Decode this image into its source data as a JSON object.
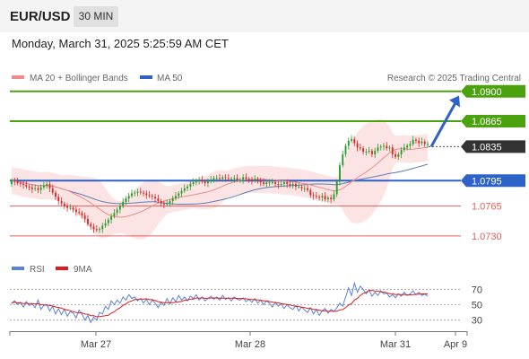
{
  "header": {
    "pair": "EUR/USD",
    "timeframe": "30 MIN"
  },
  "timestamp": "Monday, March 31, 2025 5:25:59 AM CET",
  "legend": {
    "ma20": "MA 20 + Bollinger Bands",
    "ma50": "MA 50",
    "rsi": "RSI",
    "ma9": "9MA"
  },
  "copyright": "Research © 2025 Trading Central",
  "colors": {
    "resistance": "#4aa20f",
    "current": "#333333",
    "pivot": "#2d62c8",
    "support": "#e06060",
    "arrow": "#2d62c8",
    "candle_up": "#2a9b2a",
    "candle_down": "#d62b2b",
    "ma20": "#f08a8a",
    "ma50": "#5a7db5",
    "bands": "#fde4e4",
    "rsi": "#5b83d6",
    "ma9": "#dd1c1c"
  },
  "chart_data": {
    "type": "candlestick",
    "x_ticks": [
      "Mar 27",
      "Mar 28",
      "Mar 31",
      "Apr 9"
    ],
    "ylim": [
      1.0714,
      1.0904
    ],
    "levels": [
      {
        "value": 1.09,
        "label": "1.0900",
        "kind": "resistance"
      },
      {
        "value": 1.0865,
        "label": "1.0865",
        "kind": "resistance"
      },
      {
        "value": 1.0835,
        "label": "1.0835",
        "kind": "current"
      },
      {
        "value": 1.0795,
        "label": "1.0795",
        "kind": "pivot"
      },
      {
        "value": 1.0765,
        "label": "1.0765",
        "kind": "support"
      },
      {
        "value": 1.073,
        "label": "1.0730",
        "kind": "support"
      }
    ],
    "forecast_arrow": {
      "from": 1.0835,
      "to": 1.0895
    },
    "close": [
      1.0795,
      1.0794,
      1.0792,
      1.0791,
      1.079,
      1.0788,
      1.0787,
      1.0785,
      1.0786,
      1.0784,
      1.0787,
      1.0789,
      1.0791,
      1.0786,
      1.0781,
      1.0776,
      1.0771,
      1.0768,
      1.0765,
      1.0763,
      1.0763,
      1.0761,
      1.0758,
      1.0757,
      1.0754,
      1.075,
      1.0744,
      1.0741,
      1.0738,
      1.0737,
      1.0738,
      1.0742,
      1.0745,
      1.0749,
      1.0753,
      1.0757,
      1.0761,
      1.0765,
      1.077,
      1.0774,
      1.0777,
      1.078,
      1.0781,
      1.0782,
      1.0781,
      1.078,
      1.0778,
      1.0777,
      1.0776,
      1.0774,
      1.0771,
      1.0768,
      1.0767,
      1.0768,
      1.0771,
      1.0774,
      1.0777,
      1.078,
      1.0783,
      1.0786,
      1.0788,
      1.0791,
      1.0793,
      1.0795,
      1.0796,
      1.0794,
      1.0792,
      1.0794,
      1.0796,
      1.0798,
      1.0798,
      1.0797,
      1.0799,
      1.0798,
      1.0797,
      1.0797,
      1.0798,
      1.0796,
      1.0796,
      1.0799,
      1.0797,
      1.0796,
      1.0795,
      1.0797,
      1.0795,
      1.0793,
      1.0791,
      1.0793,
      1.0793,
      1.0793,
      1.0791,
      1.079,
      1.0791,
      1.0793,
      1.0791,
      1.0789,
      1.0791,
      1.0788,
      1.0788,
      1.0786,
      1.0786,
      1.0784,
      1.0778,
      1.0777,
      1.0776,
      1.0775,
      1.0777,
      1.0773,
      1.0775,
      1.0773,
      1.0779,
      1.0794,
      1.0813,
      1.0826,
      1.0836,
      1.0842,
      1.0844,
      1.0839,
      1.0834,
      1.0833,
      1.0829,
      1.0829,
      1.083,
      1.0826,
      1.083,
      1.0834,
      1.0835,
      1.0836,
      1.0833,
      1.0834,
      1.0826,
      1.0823,
      1.0826,
      1.0831,
      1.0834,
      1.0836,
      1.0838,
      1.0843,
      1.0842,
      1.0839,
      1.0841,
      1.0838,
      1.0838
    ],
    "rsi": {
      "ticks": [
        70,
        50,
        30
      ],
      "rsi": [
        52,
        55,
        50,
        53,
        47,
        54,
        49,
        51,
        46,
        56,
        44,
        49,
        50,
        42,
        48,
        38,
        45,
        37,
        44,
        35,
        41,
        39,
        33,
        43,
        38,
        30,
        36,
        27,
        34,
        30,
        40,
        38,
        48,
        44,
        55,
        50,
        56,
        52,
        60,
        56,
        63,
        58,
        60,
        55,
        58,
        52,
        57,
        50,
        56,
        52,
        46,
        53,
        49,
        58,
        51,
        59,
        54,
        62,
        56,
        60,
        55,
        61,
        58,
        63,
        56,
        60,
        55,
        58,
        61,
        57,
        60,
        56,
        62,
        57,
        59,
        55,
        60,
        57,
        56,
        59,
        54,
        57,
        53,
        58,
        52,
        56,
        50,
        55,
        52,
        47,
        53,
        48,
        51,
        45,
        50,
        46,
        44,
        49,
        42,
        47,
        43,
        40,
        46,
        38,
        44,
        36,
        42,
        45,
        39,
        44,
        41,
        46,
        52,
        48,
        60,
        72,
        62,
        78,
        66,
        74,
        70,
        64,
        69,
        61,
        66,
        62,
        68,
        64,
        65,
        60,
        63,
        59,
        64,
        61,
        66,
        62,
        64,
        68,
        63,
        66,
        62,
        64,
        61
      ]
    }
  }
}
